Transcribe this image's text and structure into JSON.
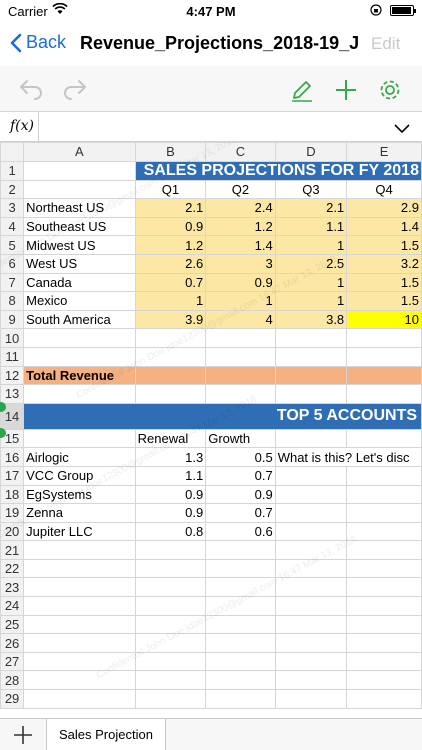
{
  "status": {
    "carrier": "Carrier",
    "time": "4:47 PM"
  },
  "nav": {
    "back_label": "Back",
    "title": "Revenue_Projections_2018-19_J...",
    "edit_label": "Edit"
  },
  "formula": {
    "fx_label": "f(x)",
    "value": ""
  },
  "columns": [
    "A",
    "B",
    "C",
    "D",
    "E"
  ],
  "rows": [
    {
      "n": "1",
      "a": "",
      "b": "",
      "c": "",
      "d": "",
      "e": ""
    },
    {
      "n": "2",
      "a": "",
      "b": "Q1",
      "c": "Q2",
      "d": "Q3",
      "e": "Q4"
    },
    {
      "n": "3",
      "a": "Northeast US",
      "b": "2.1",
      "c": "2.4",
      "d": "2.1",
      "e": "2.9"
    },
    {
      "n": "4",
      "a": "Southeast US",
      "b": "0.9",
      "c": "1.2",
      "d": "1.1",
      "e": "1.4"
    },
    {
      "n": "5",
      "a": "Midwest US",
      "b": "1.2",
      "c": "1.4",
      "d": "1",
      "e": "1.5"
    },
    {
      "n": "6",
      "a": "West US",
      "b": "2.6",
      "c": "3",
      "d": "2.5",
      "e": "3.2"
    },
    {
      "n": "7",
      "a": "Canada",
      "b": "0.7",
      "c": "0.9",
      "d": "1",
      "e": "1.5"
    },
    {
      "n": "8",
      "a": "Mexico",
      "b": "1",
      "c": "1",
      "d": "1",
      "e": "1.5"
    },
    {
      "n": "9",
      "a": "South America",
      "b": "3.9",
      "c": "4",
      "d": "3.8",
      "e": "10"
    },
    {
      "n": "10",
      "a": "",
      "b": "",
      "c": "",
      "d": "",
      "e": ""
    },
    {
      "n": "11",
      "a": "",
      "b": "",
      "c": "",
      "d": "",
      "e": ""
    },
    {
      "n": "12",
      "a": "Total Revenue",
      "b": "",
      "c": "",
      "d": "",
      "e": ""
    },
    {
      "n": "13",
      "a": "",
      "b": "",
      "c": "",
      "d": "",
      "e": ""
    },
    {
      "n": "14",
      "a": "",
      "b": "",
      "c": "",
      "d": "",
      "e": ""
    },
    {
      "n": "15",
      "a": "",
      "b": "Renewal",
      "c": "Growth",
      "d": "",
      "e": ""
    },
    {
      "n": "16",
      "a": "Airlogic",
      "b": "1.3",
      "c": "0.5",
      "d": "What is this? Let's disc",
      "e": ""
    },
    {
      "n": "17",
      "a": "VCC Group",
      "b": "1.1",
      "c": "0.7",
      "d": "",
      "e": ""
    },
    {
      "n": "18",
      "a": "EgSystems",
      "b": "0.9",
      "c": "0.9",
      "d": "",
      "e": ""
    },
    {
      "n": "19",
      "a": "Zenna",
      "b": "0.9",
      "c": "0.7",
      "d": "",
      "e": ""
    },
    {
      "n": "20",
      "a": "Jupiter LLC",
      "b": "0.8",
      "c": "0.6",
      "d": "",
      "e": ""
    },
    {
      "n": "21",
      "a": "",
      "b": "",
      "c": "",
      "d": "",
      "e": ""
    },
    {
      "n": "22",
      "a": "",
      "b": "",
      "c": "",
      "d": "",
      "e": ""
    },
    {
      "n": "23",
      "a": "",
      "b": "",
      "c": "",
      "d": "",
      "e": ""
    },
    {
      "n": "24",
      "a": "",
      "b": "",
      "c": "",
      "d": "",
      "e": ""
    },
    {
      "n": "25",
      "a": "",
      "b": "",
      "c": "",
      "d": "",
      "e": ""
    },
    {
      "n": "26",
      "a": "",
      "b": "",
      "c": "",
      "d": "",
      "e": ""
    },
    {
      "n": "27",
      "a": "",
      "b": "",
      "c": "",
      "d": "",
      "e": ""
    },
    {
      "n": "28",
      "a": "",
      "b": "",
      "c": "",
      "d": "",
      "e": ""
    },
    {
      "n": "29",
      "a": "",
      "b": "",
      "c": "",
      "d": "",
      "e": ""
    }
  ],
  "banner1": "SALES PROJECTIONS FOR FY 2018",
  "banner2": "TOP 5 ACCOUNTS",
  "watermark": "Confidential John Doe jdoe12300@gmail.com 16:47 Mar 13, 2018",
  "sheet_tab": "Sales Projection",
  "colors": {
    "accent": "#1b6bd9",
    "banner": "#2f6db5",
    "highlight": "#fde7a5",
    "total_row": "#f6b183",
    "selection_handle": "#2aa44f"
  },
  "icons": [
    "undo-icon",
    "redo-icon",
    "pencil-icon",
    "plus-icon",
    "gear-icon",
    "chevron-down-icon",
    "add-sheet-icon"
  ]
}
